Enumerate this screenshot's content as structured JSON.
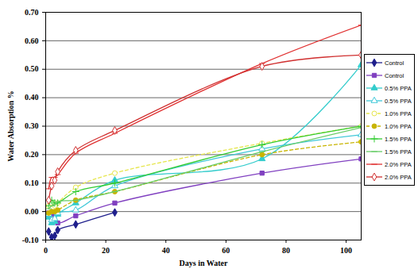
{
  "chart_data": {
    "type": "line",
    "x_label": "Days in Water",
    "y_label": "Water Absorption %",
    "x": [
      1,
      2,
      3,
      4,
      10,
      23,
      72,
      105
    ],
    "xlim": [
      0,
      105
    ],
    "xticks": [
      0,
      20,
      40,
      60,
      80,
      100
    ],
    "ylim": [
      -0.1,
      0.7
    ],
    "yticks": [
      {
        "value": -0.1,
        "label": "-0.10"
      },
      {
        "value": 0,
        "label": "0.00"
      },
      {
        "value": 0.1,
        "label": "0.10"
      },
      {
        "value": 0.2,
        "label": "0.20"
      },
      {
        "value": 0.3,
        "label": "0.30"
      },
      {
        "value": 0.4,
        "label": "0.40"
      },
      {
        "value": 0.5,
        "label": "0.50"
      },
      {
        "value": 0.6,
        "label": "0.60"
      },
      {
        "value": 0.7,
        "label": "0.70"
      }
    ],
    "grid": true,
    "legend": "right",
    "series": [
      {
        "name": "Control",
        "color": "#1f1f8c",
        "marker": "diamond",
        "line_style": "solid",
        "values": [
          -0.07,
          -0.09,
          -0.085,
          -0.065,
          -0.045,
          -0.003,
          null,
          null
        ]
      },
      {
        "name": "Control",
        "color": "#8040c0",
        "marker": "square",
        "line_style": "solid",
        "values": [
          -0.005,
          -0.01,
          -0.01,
          -0.04,
          -0.015,
          0.03,
          0.135,
          0.185
        ]
      },
      {
        "name": "0.5% PPA",
        "color": "#33cccc",
        "marker": "triangle",
        "line_style": "solid",
        "values": [
          -0.02,
          -0.04,
          -0.035,
          -0.01,
          0.03,
          0.11,
          0.185,
          0.515
        ]
      },
      {
        "name": "0.5% PPA",
        "color": "#40c8d8",
        "marker": "triangle-open",
        "line_style": "solid",
        "values": [
          -0.01,
          -0.03,
          -0.025,
          -0.005,
          0.005,
          0.09,
          0.22,
          0.27
        ]
      },
      {
        "name": "1.0% PPA",
        "color": "#e6e64d",
        "marker": "circle-open",
        "line_style": "dashed",
        "values": [
          0.02,
          0.03,
          0.02,
          0.03,
          0.085,
          0.135,
          0.24,
          0.3
        ]
      },
      {
        "name": "1.0% PPA",
        "color": "#c8b400",
        "marker": "circle",
        "line_style": "dashed",
        "values": [
          -0.005,
          0.0,
          0.0,
          0.005,
          0.04,
          0.07,
          0.2,
          0.245
        ]
      },
      {
        "name": "1.5% PPA",
        "color": "#33cc33",
        "marker": "plus",
        "line_style": "solid",
        "values": [
          0.02,
          0.04,
          0.03,
          0.03,
          0.07,
          0.1,
          0.235,
          0.3
        ]
      },
      {
        "name": "1.5% PPA",
        "color": "#66cc66",
        "marker": "line",
        "line_style": "solid",
        "values": [
          0.01,
          0.02,
          0.025,
          0.035,
          0.04,
          0.07,
          0.21,
          0.295
        ]
      },
      {
        "name": "2.0% PPA",
        "color": "#e03030",
        "marker": "line",
        "line_style": "solid",
        "values": [
          0.08,
          0.12,
          0.12,
          0.13,
          0.205,
          0.275,
          0.52,
          0.655
        ]
      },
      {
        "name": "2.0% PPA",
        "color": "#d03030",
        "marker": "diamond-open",
        "line_style": "solid",
        "values": [
          0.04,
          0.09,
          0.11,
          0.14,
          0.215,
          0.285,
          0.51,
          0.55
        ]
      }
    ]
  }
}
